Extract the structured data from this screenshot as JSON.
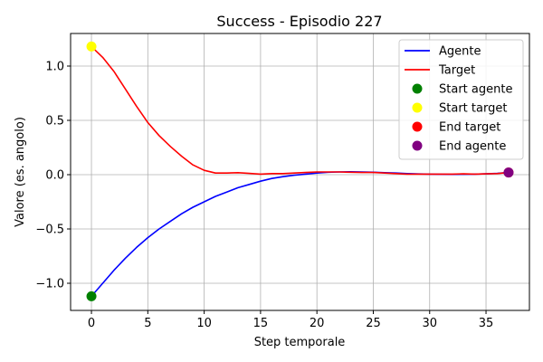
{
  "chart_data": {
    "type": "line",
    "title": "Success - Episodio 227",
    "xlabel": "Step temporale",
    "ylabel": "Valore (es. angolo)",
    "xlim": [
      -1.85,
      38.85
    ],
    "ylim": [
      -1.25,
      1.3
    ],
    "xticks": [
      0,
      5,
      10,
      15,
      20,
      25,
      30,
      35
    ],
    "xtick_labels": [
      "0",
      "5",
      "10",
      "15",
      "20",
      "25",
      "30",
      "35"
    ],
    "yticks": [
      -1.0,
      -0.5,
      0.0,
      0.5,
      1.0
    ],
    "ytick_labels": [
      "−1.0",
      "−0.5",
      "0.0",
      "0.5",
      "1.0"
    ],
    "grid": true,
    "legend_position": "top-right",
    "series": [
      {
        "name": "Agente",
        "color": "#0000ff",
        "kind": "line",
        "x": [
          0,
          1,
          2,
          3,
          4,
          5,
          6,
          7,
          8,
          9,
          10,
          11,
          12,
          13,
          14,
          15,
          16,
          17,
          18,
          19,
          20,
          21,
          22,
          23,
          24,
          25,
          26,
          27,
          28,
          29,
          30,
          31,
          32,
          33,
          34,
          35,
          36,
          37
        ],
        "y": [
          -1.12,
          -1.0,
          -0.88,
          -0.77,
          -0.67,
          -0.58,
          -0.5,
          -0.43,
          -0.36,
          -0.3,
          -0.25,
          -0.2,
          -0.16,
          -0.12,
          -0.09,
          -0.06,
          -0.035,
          -0.018,
          -0.005,
          0.005,
          0.015,
          0.022,
          0.025,
          0.027,
          0.025,
          0.022,
          0.018,
          0.015,
          0.01,
          0.007,
          0.005,
          0.004,
          0.003,
          0.004,
          0.005,
          0.008,
          0.012,
          0.02
        ]
      },
      {
        "name": "Target",
        "color": "#ff0000",
        "kind": "line",
        "x": [
          0,
          1,
          2,
          3,
          4,
          5,
          6,
          7,
          8,
          9,
          10,
          11,
          12,
          13,
          14,
          15,
          16,
          17,
          18,
          19,
          20,
          21,
          22,
          23,
          24,
          25,
          26,
          27,
          28,
          29,
          30,
          31,
          32,
          33,
          34,
          35,
          36,
          37
        ],
        "y": [
          1.18,
          1.08,
          0.95,
          0.79,
          0.63,
          0.48,
          0.36,
          0.26,
          0.17,
          0.09,
          0.04,
          0.015,
          0.015,
          0.018,
          0.012,
          0.005,
          0.01,
          0.01,
          0.015,
          0.02,
          0.025,
          0.025,
          0.025,
          0.022,
          0.02,
          0.02,
          0.015,
          0.01,
          0.005,
          0.005,
          0.005,
          0.005,
          0.005,
          0.008,
          0.005,
          0.008,
          0.01,
          0.02
        ]
      },
      {
        "name": "Start agente",
        "color": "#008000",
        "kind": "point",
        "x": [
          0
        ],
        "y": [
          -1.12
        ]
      },
      {
        "name": "Start target",
        "color": "#ffff00",
        "kind": "point",
        "x": [
          0
        ],
        "y": [
          1.18
        ]
      },
      {
        "name": "End target",
        "color": "#ff0000",
        "kind": "point",
        "x": [
          37
        ],
        "y": [
          0.02
        ]
      },
      {
        "name": "End agente",
        "color": "#800080",
        "kind": "point",
        "x": [
          37
        ],
        "y": [
          0.02
        ]
      }
    ]
  }
}
